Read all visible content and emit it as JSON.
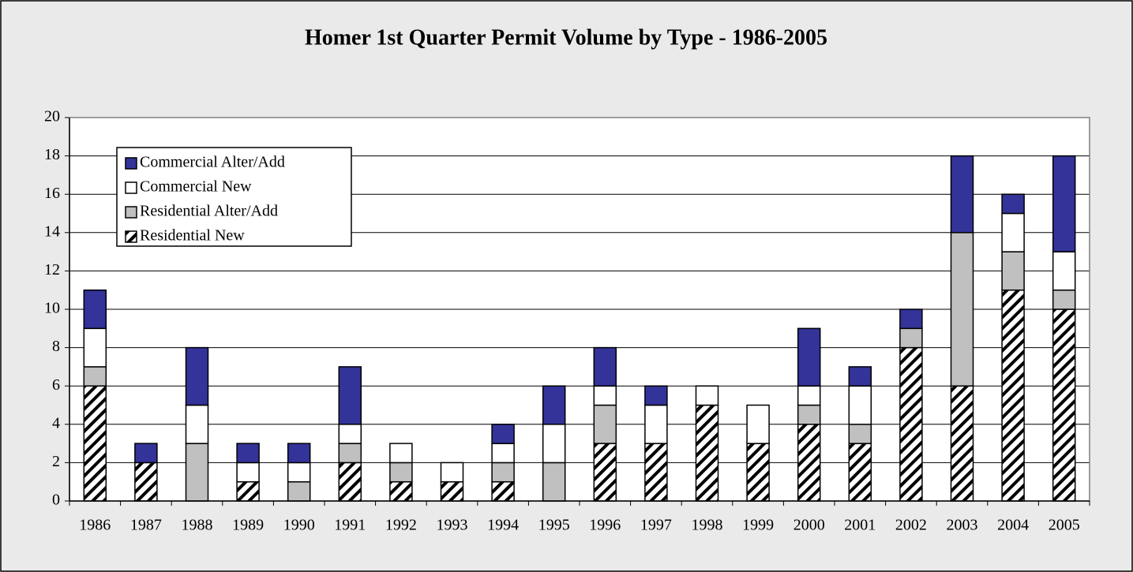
{
  "chart_data": {
    "type": "bar",
    "stacked": true,
    "title": "Homer 1st Quarter Permit Volume by Type - 1986-2005",
    "categories": [
      "1986",
      "1987",
      "1988",
      "1989",
      "1990",
      "1991",
      "1992",
      "1993",
      "1994",
      "1995",
      "1996",
      "1997",
      "1998",
      "1999",
      "2000",
      "2001",
      "2002",
      "2003",
      "2004",
      "2005"
    ],
    "series": [
      {
        "name": "Residential New",
        "color": "#ffffff",
        "hatch": true,
        "values": [
          6,
          2,
          0,
          1,
          0,
          2,
          1,
          1,
          1,
          0,
          3,
          3,
          5,
          3,
          4,
          3,
          8,
          6,
          11,
          10
        ]
      },
      {
        "name": "Residential Alter/Add",
        "color": "#c0c0c0",
        "values": [
          1,
          0,
          3,
          0,
          1,
          1,
          1,
          0,
          1,
          2,
          2,
          0,
          0,
          0,
          1,
          1,
          1,
          8,
          2,
          1
        ]
      },
      {
        "name": "Commercial New",
        "color": "#ffffff",
        "values": [
          2,
          0,
          2,
          1,
          1,
          1,
          1,
          1,
          1,
          2,
          1,
          2,
          1,
          2,
          1,
          2,
          0,
          0,
          2,
          2
        ]
      },
      {
        "name": "Commercial Alter/Add",
        "color": "#333399",
        "values": [
          2,
          1,
          3,
          1,
          1,
          3,
          0,
          0,
          1,
          2,
          2,
          1,
          0,
          0,
          3,
          1,
          1,
          4,
          1,
          5
        ]
      }
    ],
    "ylim": [
      0,
      20
    ],
    "yticks": [
      0,
      2,
      4,
      6,
      8,
      10,
      12,
      14,
      16,
      18,
      20
    ],
    "grid": true,
    "legend": "upper left"
  }
}
